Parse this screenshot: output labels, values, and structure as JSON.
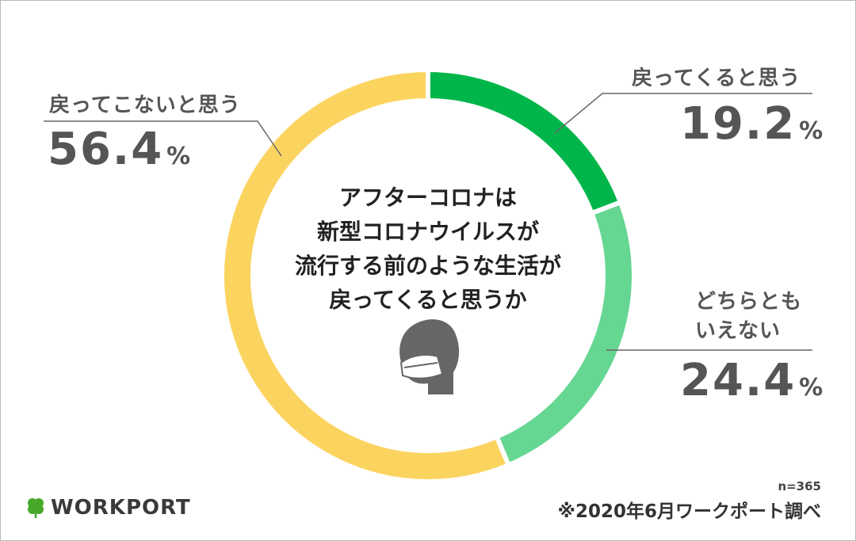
{
  "chart_data": {
    "type": "pie",
    "title_lines": [
      "アフターコロナは",
      "新型コロナウイルスが",
      "流行する前のような生活が",
      "戻ってくると思うか"
    ],
    "unit": "%",
    "slices": [
      {
        "label": "戻ってくると思う",
        "value": 19.2,
        "display": "19.2",
        "color": "#00b64a"
      },
      {
        "label": "どちらともいえない",
        "label_lines": [
          "どちらとも",
          "いえない"
        ],
        "value": 24.4,
        "display": "24.4",
        "color": "#66d693"
      },
      {
        "label": "戻ってこないと思う",
        "value": 56.4,
        "display": "56.4",
        "color": "#fbd45f"
      }
    ],
    "sample_note": "n=365",
    "source": "※2020年6月ワークポート調べ"
  },
  "brand": {
    "name": "WORKPORT",
    "clover_color": "#47a82a"
  },
  "icons": {
    "center": "face-mask-icon"
  }
}
